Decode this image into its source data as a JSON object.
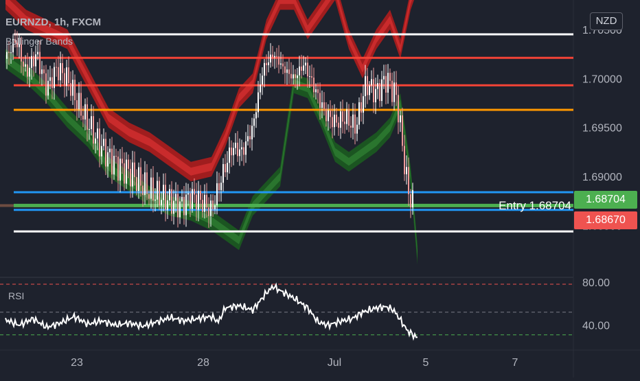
{
  "header": {
    "title": "EURNZD, 1h, FXCM",
    "indicator": "Bollinger Bands"
  },
  "currency_badge": "NZD",
  "rsi_label": "RSI",
  "entry_label": "Entry 1.68704",
  "price_tags": {
    "entry": "1.68704",
    "last": "1.68670"
  },
  "colors": {
    "background": "#1e222d",
    "upper_band": "#b71c1c",
    "lower_band": "#1b5e20",
    "candle_up": "#ffffff",
    "candle_down": "#ef9a9a",
    "white_line": "#ffffff",
    "red_line": "#f44336",
    "orange_line": "#ff9800",
    "blue_line": "#2196f3",
    "green_line": "#4caf50"
  },
  "chart_data": [
    {
      "type": "line",
      "title": "EURNZD, 1h, FXCM",
      "ylim": [
        1.68,
        1.708
      ],
      "y_ticks": [
        "1.68500",
        "1.69000",
        "1.69500",
        "1.70000",
        "1.70500"
      ],
      "y_tick_values": [
        1.685,
        1.69,
        1.695,
        1.7,
        1.705
      ],
      "x_ticks": [
        "23",
        "28",
        "Jul",
        "5",
        "7"
      ],
      "grid": false,
      "horizontal_levels": [
        {
          "price": 1.7045,
          "color": "white"
        },
        {
          "price": 1.7021,
          "color": "red"
        },
        {
          "price": 1.6993,
          "color": "red"
        },
        {
          "price": 1.6968,
          "color": "orange"
        },
        {
          "price": 1.6884,
          "color": "blue"
        },
        {
          "price": 1.68704,
          "color": "green"
        },
        {
          "price": 1.6866,
          "color": "blue"
        },
        {
          "price": 1.6844,
          "color": "white"
        }
      ],
      "series": [
        {
          "name": "",
          "role": "price",
          "x": [
            0,
            15,
            30,
            45,
            60,
            75,
            90,
            105,
            120,
            135,
            150,
            165,
            180,
            195,
            210,
            225,
            240,
            255,
            270,
            285,
            300,
            315,
            330,
            345,
            360,
            375,
            390,
            405,
            420,
            435,
            450,
            465,
            480,
            495,
            510,
            525,
            540,
            555,
            570,
            585,
            595
          ],
          "y": [
            1.702,
            1.704,
            1.7005,
            1.7025,
            1.699,
            1.701,
            1.7,
            1.6975,
            1.6955,
            1.6935,
            1.692,
            1.691,
            1.6905,
            1.6895,
            1.6885,
            1.688,
            1.6875,
            1.687,
            1.688,
            1.6875,
            1.6865,
            1.69,
            1.693,
            1.6925,
            1.695,
            1.701,
            1.7025,
            1.701,
            1.7,
            1.7015,
            1.699,
            1.6965,
            1.6955,
            1.696,
            1.695,
            1.6995,
            1.6985,
            1.7,
            1.698,
            1.689,
            1.6867
          ]
        },
        {
          "name": "",
          "role": "upper_band",
          "x": [
            0,
            30,
            60,
            90,
            120,
            150,
            180,
            210,
            240,
            270,
            300,
            320,
            340,
            360,
            380,
            400,
            420,
            440,
            460,
            480,
            500,
            520,
            540,
            560,
            575,
            590,
            600
          ],
          "y": [
            1.708,
            1.706,
            1.705,
            1.704,
            1.7,
            1.696,
            1.6945,
            1.6935,
            1.692,
            1.6905,
            1.691,
            1.694,
            1.698,
            1.6995,
            1.705,
            1.708,
            1.708,
            1.705,
            1.707,
            1.709,
            1.704,
            1.701,
            1.704,
            1.706,
            1.703,
            1.708,
            1.71
          ]
        },
        {
          "name": "",
          "role": "lower_band",
          "x": [
            0,
            30,
            60,
            90,
            120,
            150,
            180,
            210,
            240,
            270,
            300,
            320,
            340,
            360,
            380,
            400,
            420,
            440,
            460,
            480,
            500,
            520,
            540,
            560,
            575,
            590,
            600
          ],
          "y": [
            1.702,
            1.7005,
            1.6985,
            1.696,
            1.694,
            1.691,
            1.6895,
            1.688,
            1.687,
            1.6865,
            1.6855,
            1.6845,
            1.6835,
            1.687,
            1.6885,
            1.69,
            1.6995,
            1.699,
            1.696,
            1.6925,
            1.6915,
            1.6925,
            1.6935,
            1.695,
            1.6975,
            1.69,
            1.682
          ]
        }
      ]
    },
    {
      "type": "line",
      "title": "RSI",
      "ylim": [
        20,
        85
      ],
      "y_ticks": [
        "40.00",
        "80.00"
      ],
      "y_tick_values": [
        40,
        80
      ],
      "reference_levels": [
        {
          "value": 78,
          "color": "red"
        },
        {
          "value": 52,
          "color": "gray"
        },
        {
          "value": 31,
          "color": "green"
        }
      ],
      "series": [
        {
          "name": "RSI",
          "x": [
            0,
            20,
            40,
            60,
            80,
            100,
            120,
            140,
            160,
            180,
            200,
            220,
            240,
            260,
            280,
            300,
            310,
            320,
            340,
            360,
            370,
            380,
            390,
            400,
            420,
            440,
            455,
            470,
            490,
            505,
            520,
            540,
            555,
            565,
            575,
            585,
            600
          ],
          "y": [
            45,
            40,
            46,
            38,
            42,
            48,
            41,
            44,
            40,
            42,
            39,
            43,
            47,
            44,
            46,
            48,
            43,
            56,
            58,
            54,
            62,
            70,
            76,
            72,
            65,
            56,
            43,
            40,
            44,
            46,
            52,
            56,
            57,
            54,
            45,
            35,
            28
          ]
        }
      ]
    }
  ]
}
